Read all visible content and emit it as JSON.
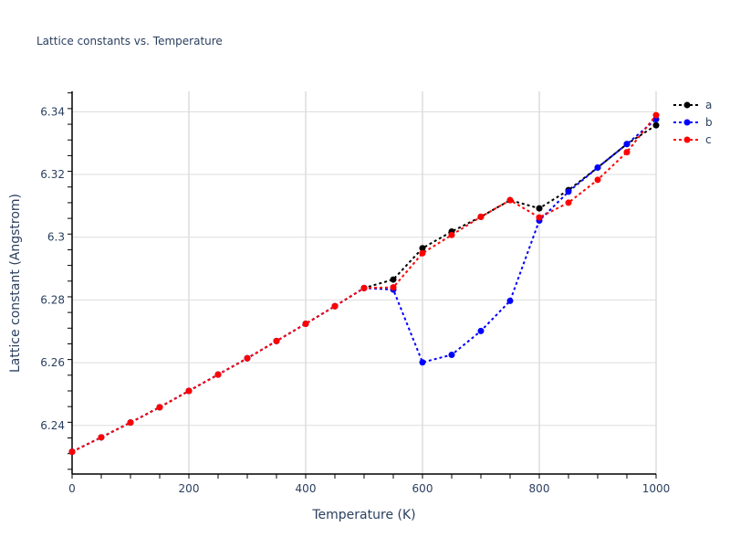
{
  "chart_data": {
    "type": "line",
    "title": "Lattice constants vs. Temperature",
    "xlabel": "Temperature (K)",
    "ylabel": "Lattice constant (Angstrom)",
    "xlim": [
      0,
      1000
    ],
    "ylim": [
      6.2245,
      6.3465
    ],
    "xticks": [
      0,
      200,
      400,
      600,
      800,
      1000
    ],
    "xtick_labels": [
      "0",
      "200",
      "400",
      "600",
      "800",
      "1000"
    ],
    "yticks": [
      6.24,
      6.26,
      6.28,
      6.3,
      6.32,
      6.34
    ],
    "ytick_labels": [
      "6.24",
      "6.26",
      "6.28",
      "6.3",
      "6.32",
      "6.34"
    ],
    "grid": true,
    "legend_position": "right-top",
    "x": [
      0,
      50,
      100,
      150,
      200,
      250,
      300,
      350,
      400,
      450,
      500,
      550,
      600,
      650,
      700,
      750,
      800,
      850,
      900,
      950,
      1000
    ],
    "series": [
      {
        "name": "a",
        "color": "#000000",
        "line_style": "dotted",
        "marker": "circle",
        "values": [
          6.2316,
          6.2362,
          6.2409,
          6.2458,
          6.251,
          6.2562,
          6.2614,
          6.2669,
          6.2724,
          6.278,
          6.2838,
          6.2865,
          6.2965,
          6.3018,
          6.3065,
          6.3118,
          6.3092,
          6.315,
          6.3222,
          6.3297,
          6.3357
        ]
      },
      {
        "name": "b",
        "color": "#0000ff",
        "line_style": "dotted",
        "marker": "circle",
        "values": [
          6.2316,
          6.2362,
          6.2409,
          6.2458,
          6.251,
          6.2562,
          6.2614,
          6.2669,
          6.2724,
          6.278,
          6.2838,
          6.2833,
          6.2601,
          6.2625,
          6.2701,
          6.2797,
          6.3053,
          6.3145,
          6.3222,
          6.3297,
          6.3376
        ]
      },
      {
        "name": "c",
        "color": "#ff0000",
        "line_style": "dotted",
        "marker": "circle",
        "values": [
          6.2316,
          6.2362,
          6.2409,
          6.2458,
          6.251,
          6.2562,
          6.2614,
          6.2669,
          6.2724,
          6.278,
          6.2838,
          6.284,
          6.2949,
          6.3007,
          6.3065,
          6.3118,
          6.3063,
          6.311,
          6.3183,
          6.3271,
          6.3389
        ]
      }
    ]
  }
}
